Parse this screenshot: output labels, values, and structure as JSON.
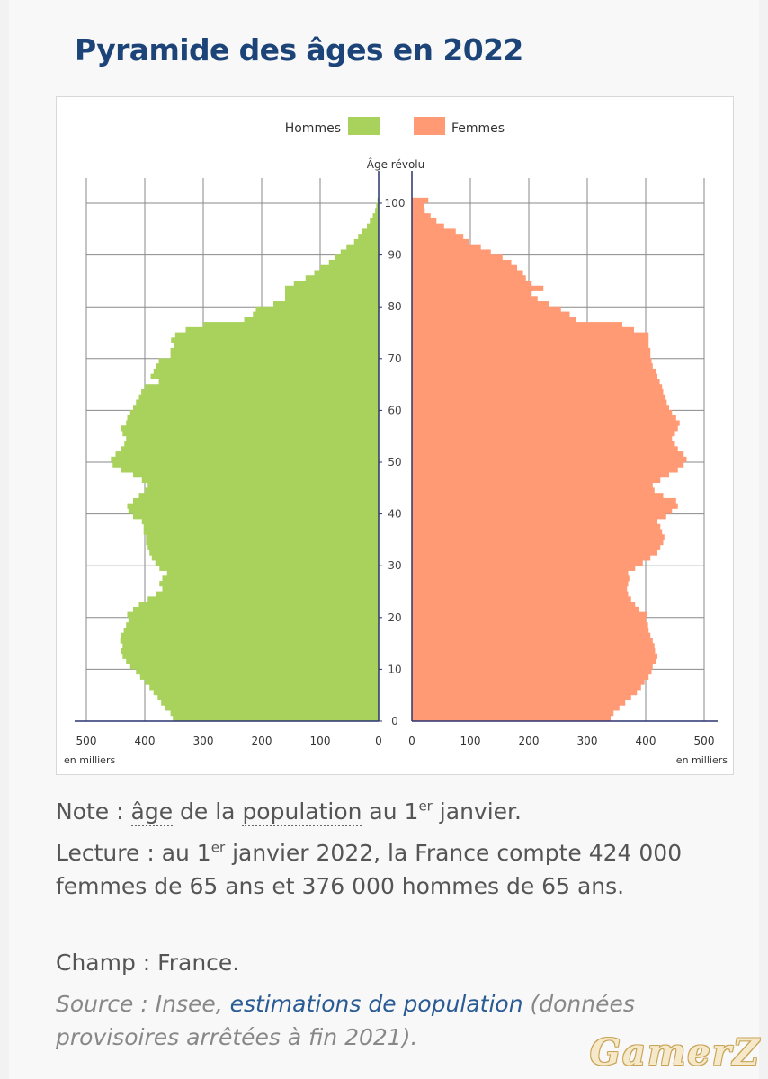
{
  "title": "Pyramide des âges en 2022",
  "notes": {
    "note_label": "Note : ",
    "note_word1": "âge",
    "note_mid": " de la ",
    "note_word2": "population",
    "note_pre": " au 1",
    "note_sup": "er",
    "note_post": " janvier.",
    "lecture_pre": "Lecture : au 1",
    "lecture_sup": "er",
    "lecture_post": " janvier 2022, la France compte 424 000 femmes de 65 ans et 376 000 hommes de 65 ans.",
    "champ": "Champ : France.",
    "source_pre": "Source : Insee, ",
    "source_link": "estimations de population",
    "source_post": " (données provisoires arrêtées à fin 2021)."
  },
  "watermark": "GamerZ",
  "chart_data": {
    "type": "bar",
    "orientation": "horizontal-population-pyramid",
    "legend": [
      "Hommes",
      "Femmes"
    ],
    "legend_position": "top",
    "center_axis_label": "Âge révolu",
    "unit_label": "en milliers",
    "age_ticks": [
      0,
      10,
      20,
      30,
      40,
      50,
      60,
      70,
      80,
      90,
      100
    ],
    "value_ticks": [
      0,
      100,
      200,
      300,
      400,
      500
    ],
    "xlim": [
      0,
      500
    ],
    "ylim": [
      0,
      100
    ],
    "grid": true,
    "colors": {
      "Hommes": "#a8d25c",
      "Femmes": "#ff9a74",
      "axis": "#2a3470",
      "grid": "#8a8a8a"
    },
    "ages": [
      0,
      1,
      2,
      3,
      4,
      5,
      6,
      7,
      8,
      9,
      10,
      11,
      12,
      13,
      14,
      15,
      16,
      17,
      18,
      19,
      20,
      21,
      22,
      23,
      24,
      25,
      26,
      27,
      28,
      29,
      30,
      31,
      32,
      33,
      34,
      35,
      36,
      37,
      38,
      39,
      40,
      41,
      42,
      43,
      44,
      45,
      46,
      47,
      48,
      49,
      50,
      51,
      52,
      53,
      54,
      55,
      56,
      57,
      58,
      59,
      60,
      61,
      62,
      63,
      64,
      65,
      66,
      67,
      68,
      69,
      70,
      71,
      72,
      73,
      74,
      75,
      76,
      77,
      78,
      79,
      80,
      81,
      82,
      83,
      84,
      85,
      86,
      87,
      88,
      89,
      90,
      91,
      92,
      93,
      94,
      95,
      96,
      97,
      98,
      99,
      100
    ],
    "series": [
      {
        "name": "Hommes",
        "values": [
          352,
          356,
          365,
          372,
          378,
          385,
          392,
          400,
          408,
          415,
          425,
          432,
          438,
          440,
          438,
          442,
          440,
          436,
          432,
          428,
          430,
          420,
          410,
          395,
          380,
          370,
          375,
          370,
          362,
          375,
          382,
          388,
          392,
          395,
          398,
          398,
          402,
          402,
          405,
          420,
          428,
          430,
          420,
          410,
          400,
          395,
          405,
          420,
          440,
          455,
          458,
          450,
          440,
          435,
          432,
          438,
          440,
          432,
          430,
          425,
          420,
          415,
          410,
          406,
          400,
          376,
          390,
          385,
          380,
          376,
          356,
          356,
          350,
          355,
          348,
          330,
          300,
          230,
          215,
          210,
          180,
          160,
          160,
          160,
          145,
          125,
          110,
          100,
          85,
          75,
          65,
          55,
          42,
          35,
          28,
          20,
          15,
          10,
          6,
          4,
          2
        ]
      },
      {
        "name": "Femmes",
        "values": [
          340,
          345,
          355,
          365,
          375,
          385,
          392,
          398,
          405,
          410,
          412,
          418,
          420,
          416,
          415,
          412,
          408,
          405,
          404,
          400,
          402,
          388,
          382,
          375,
          370,
          368,
          370,
          372,
          370,
          382,
          395,
          408,
          420,
          425,
          430,
          432,
          428,
          425,
          420,
          435,
          445,
          455,
          452,
          430,
          415,
          412,
          425,
          440,
          455,
          465,
          470,
          465,
          455,
          450,
          445,
          450,
          455,
          458,
          452,
          445,
          440,
          436,
          434,
          430,
          428,
          424,
          420,
          418,
          412,
          410,
          408,
          408,
          405,
          405,
          405,
          380,
          360,
          280,
          270,
          255,
          235,
          215,
          205,
          225,
          205,
          195,
          190,
          180,
          170,
          155,
          135,
          118,
          98,
          88,
          75,
          55,
          42,
          32,
          22,
          20,
          28
        ]
      }
    ]
  }
}
